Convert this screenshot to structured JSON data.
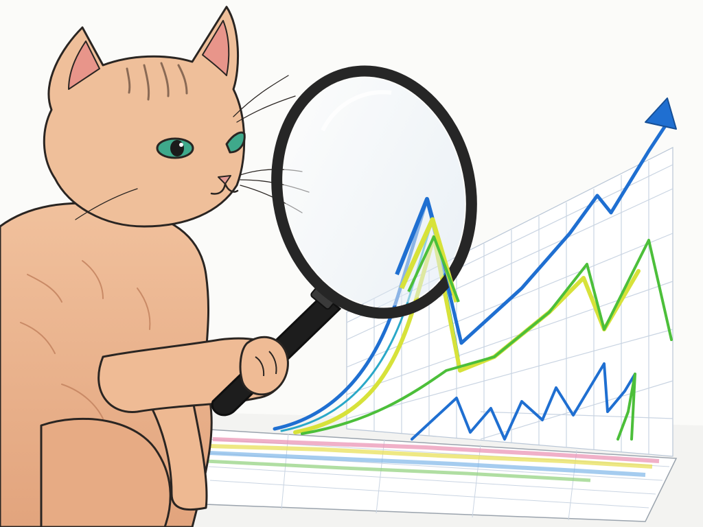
{
  "scene": {
    "subject": "cat",
    "tool": "magnifying-glass",
    "chart_kind": "rising-line-chart"
  },
  "colors": {
    "background": "#fbfbf9",
    "cat_fur": "#ecb58f",
    "cat_fur_shadow": "#d89b74",
    "cat_stripe": "#8a6a55",
    "ear_inner": "#e8958a",
    "eye": "#3fa98b",
    "outline": "#2a2522",
    "grid": "#c9d4e2",
    "line_blue": "#1f6fd1",
    "line_green": "#4cbf3a",
    "line_yellow": "#d7e23a",
    "line_teal": "#2aa8c8",
    "lens_rim": "#262626",
    "lens_glass": "#eef4fa",
    "handle": "#1d1d1d",
    "paper": "#ffffff"
  }
}
